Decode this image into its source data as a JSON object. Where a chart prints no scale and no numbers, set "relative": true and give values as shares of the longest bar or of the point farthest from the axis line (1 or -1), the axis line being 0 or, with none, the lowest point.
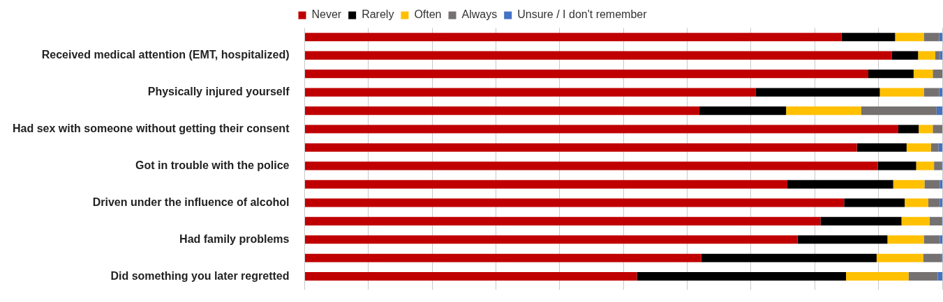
{
  "chart_data": {
    "type": "bar",
    "orientation": "horizontal",
    "stacked": true,
    "relative": true,
    "grid": "x",
    "legend": "top",
    "categories": [
      null,
      "Received medical attention (EMT, hospitalized)",
      null,
      "Physically injured yourself",
      null,
      "Had sex with someone without getting their consent",
      null,
      "Got in trouble with the police",
      null,
      "Driven under the influence of alcohol",
      null,
      "Had family problems",
      null,
      "Did something you later regretted"
    ],
    "series": [
      {
        "name": "Never",
        "color": "#c00000",
        "values": [
          0.842,
          0.921,
          0.884,
          0.707,
          0.619,
          0.931,
          0.866,
          0.899,
          0.757,
          0.846,
          0.809,
          0.773,
          0.622,
          0.521
        ]
      },
      {
        "name": "Rarely",
        "color": "#000000",
        "values": [
          0.084,
          0.041,
          0.071,
          0.195,
          0.136,
          0.032,
          0.078,
          0.06,
          0.166,
          0.095,
          0.127,
          0.141,
          0.275,
          0.328
        ]
      },
      {
        "name": "Often",
        "color": "#ffc000",
        "values": [
          0.045,
          0.027,
          0.03,
          0.069,
          0.118,
          0.022,
          0.038,
          0.028,
          0.049,
          0.037,
          0.044,
          0.057,
          0.073,
          0.098
        ]
      },
      {
        "name": "Always",
        "color": "#767171",
        "values": [
          0.024,
          0.007,
          0.015,
          0.024,
          0.118,
          0.015,
          0.012,
          0.011,
          0.024,
          0.018,
          0.019,
          0.025,
          0.028,
          0.046
        ]
      },
      {
        "name": "Unsure / I don't remember",
        "color": "#4472c4",
        "values": [
          0.005,
          0.004,
          0,
          0.005,
          0.009,
          0,
          0.006,
          0.002,
          0.004,
          0.004,
          0.001,
          0.004,
          0.002,
          0.007
        ]
      }
    ]
  }
}
